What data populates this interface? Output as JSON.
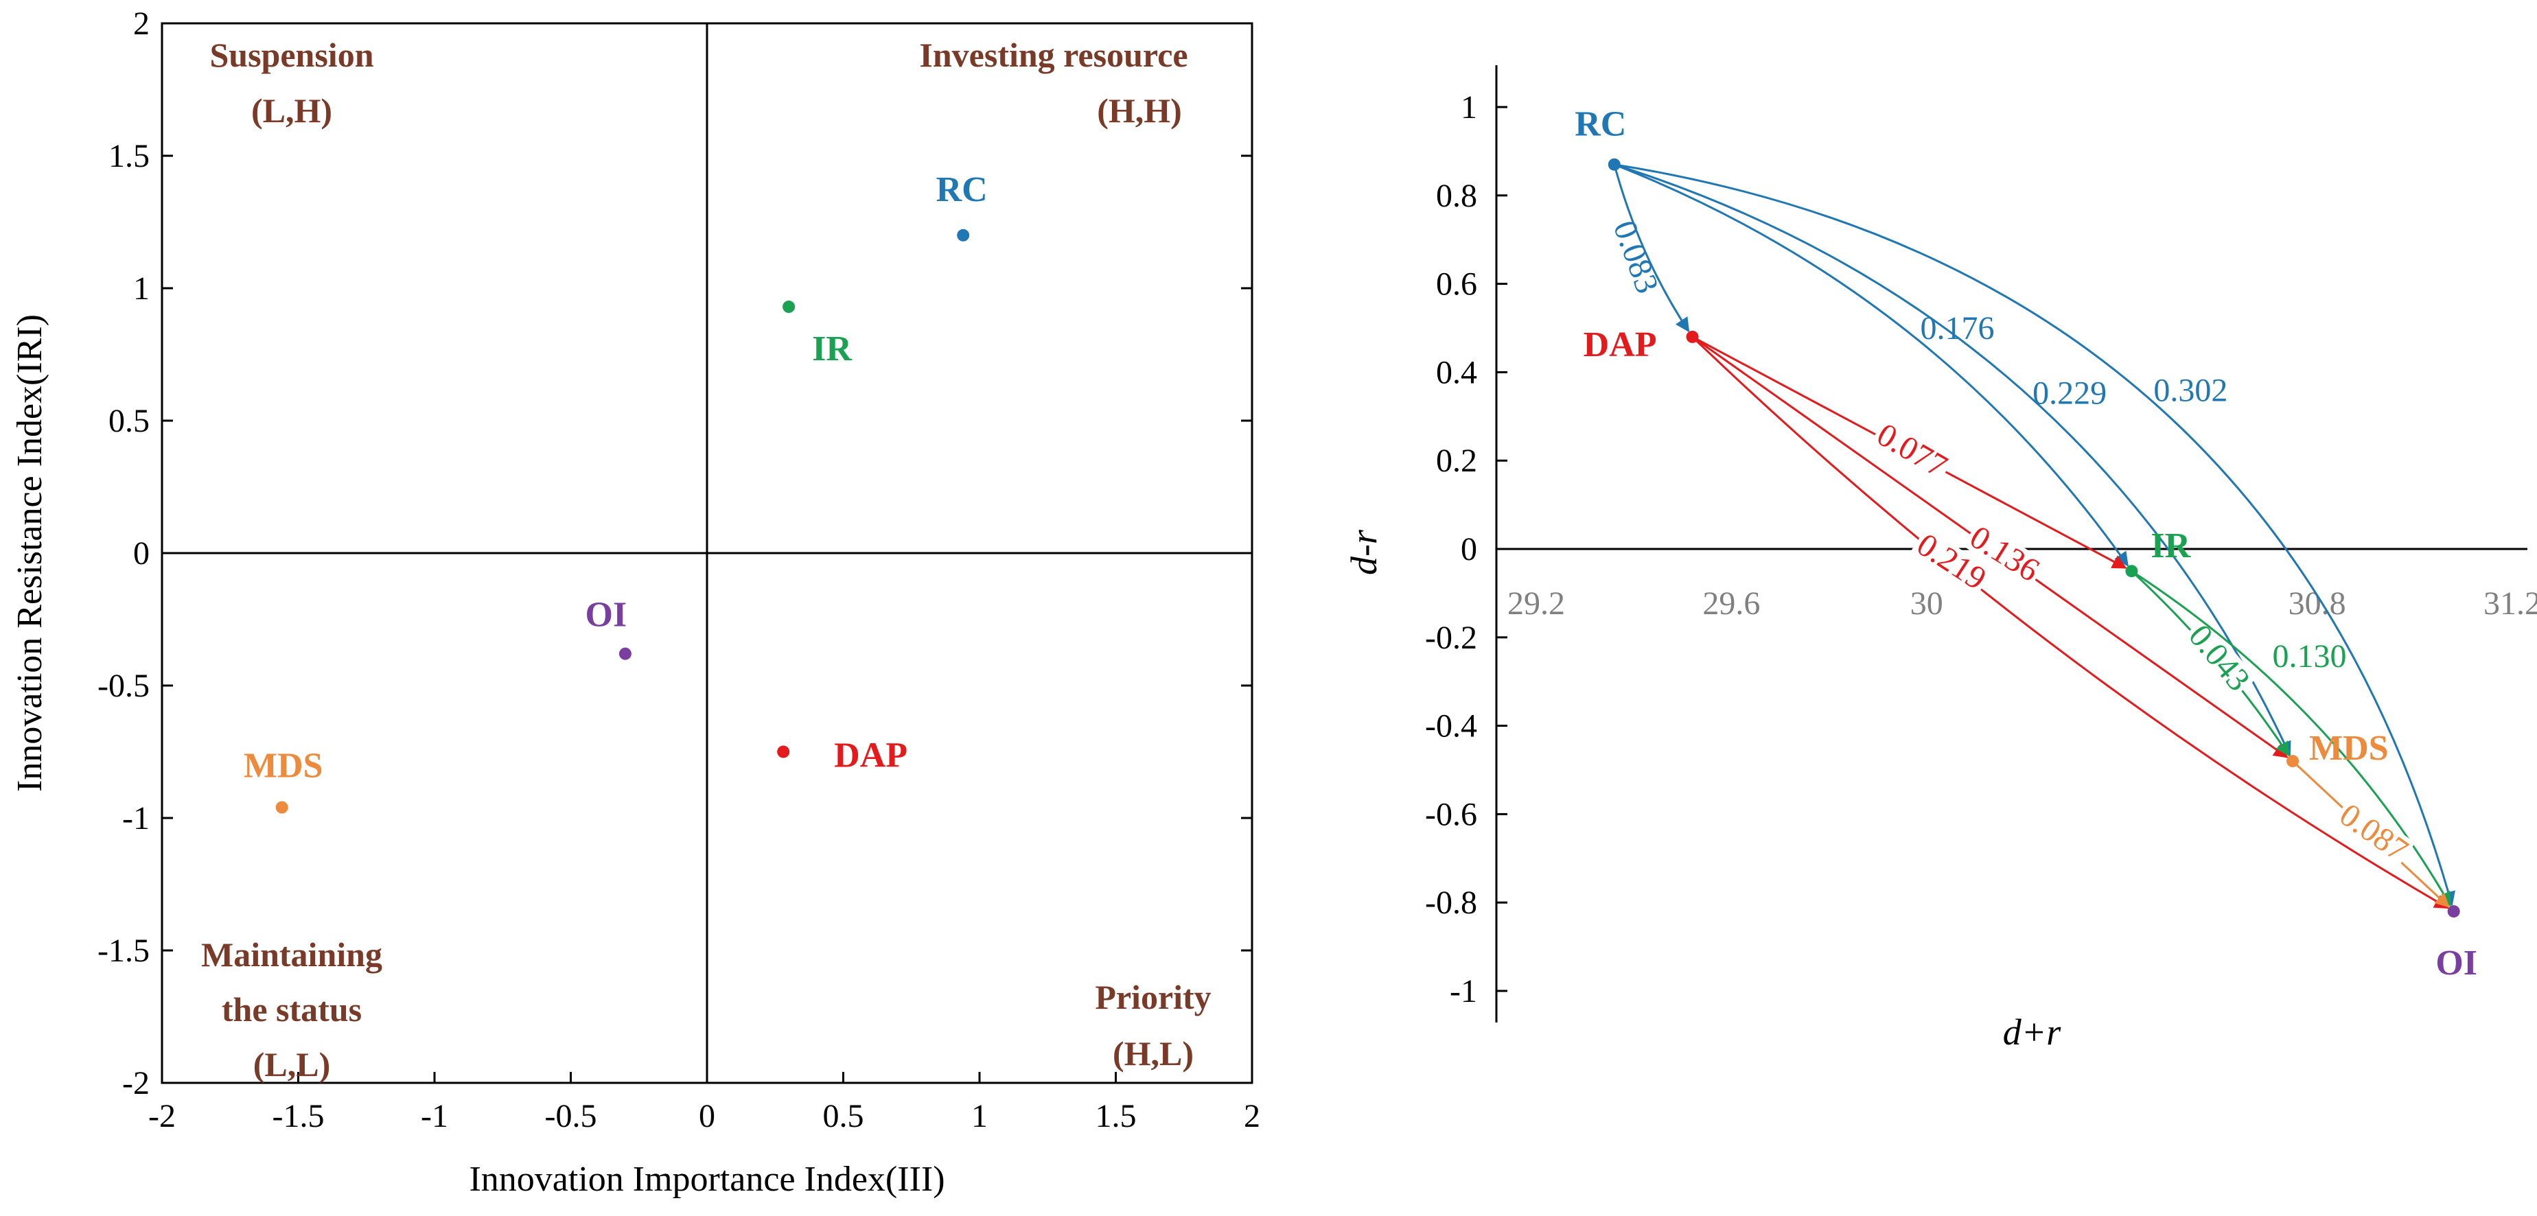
{
  "colors": {
    "RC": "#1f77b4",
    "IR": "#1aa152",
    "DAP": "#e41a1c",
    "MDS": "#ee8a3c",
    "OI": "#7a3ea0",
    "quadrant": "#7a3a28",
    "axis": "#000000",
    "grey_tick": "#808080"
  },
  "chart_data": [
    {
      "type": "scatter",
      "xlabel": "Innovation Importance Index(III)",
      "ylabel": "Innovation Resistance Index(IRI)",
      "xlim": [
        -2,
        2
      ],
      "ylim": [
        -2,
        2
      ],
      "xticks": [
        "-2",
        "-1.5",
        "-1",
        "-0.5",
        "0",
        "0.5",
        "1",
        "1.5",
        "2"
      ],
      "yticks": [
        "2",
        "1.5",
        "1",
        "0.5",
        "0",
        "-0.5",
        "-1",
        "-1.5",
        "-2"
      ],
      "points": [
        {
          "name": "RC",
          "x": 0.94,
          "y": 1.2
        },
        {
          "name": "IR",
          "x": 0.3,
          "y": 0.93
        },
        {
          "name": "DAP",
          "x": 0.28,
          "y": -0.75
        },
        {
          "name": "OI",
          "x": -0.3,
          "y": -0.38
        },
        {
          "name": "MDS",
          "x": -1.56,
          "y": -0.96
        }
      ],
      "quadrants": [
        {
          "lines": [
            "Suspension",
            "(L,H)"
          ]
        },
        {
          "lines": [
            "Investing resource",
            "(H,H)"
          ]
        },
        {
          "lines": [
            "Maintaining",
            "the status",
            "(L,L)"
          ]
        },
        {
          "lines": [
            "Priority",
            "(H,L)"
          ]
        }
      ]
    },
    {
      "type": "network",
      "xlabel": "d+r",
      "ylabel": "d-r",
      "xlim": [
        29.2,
        31.2
      ],
      "ylim": [
        -1,
        1
      ],
      "xticks": [
        "29.2",
        "29.6",
        "30",
        "30.8",
        "31.2"
      ],
      "yticks": [
        "1",
        "0.8",
        "0.6",
        "0.4",
        "0.2",
        "0",
        "-0.2",
        "-0.4",
        "-0.6",
        "-0.8",
        "-1"
      ],
      "nodes": [
        {
          "name": "RC",
          "x": 29.36,
          "y": 0.87
        },
        {
          "name": "DAP",
          "x": 29.52,
          "y": 0.48
        },
        {
          "name": "IR",
          "x": 30.42,
          "y": -0.05
        },
        {
          "name": "MDS",
          "x": 30.75,
          "y": -0.48
        },
        {
          "name": "OI",
          "x": 31.08,
          "y": -0.82
        }
      ],
      "edges": [
        {
          "from": "RC",
          "to": "DAP",
          "weight": "0.083"
        },
        {
          "from": "RC",
          "to": "IR",
          "weight": "0.176"
        },
        {
          "from": "RC",
          "to": "MDS",
          "weight": "0.229"
        },
        {
          "from": "RC",
          "to": "OI",
          "weight": "0.302"
        },
        {
          "from": "DAP",
          "to": "IR",
          "weight": "0.077"
        },
        {
          "from": "DAP",
          "to": "MDS",
          "weight": "0.136"
        },
        {
          "from": "DAP",
          "to": "OI",
          "weight": "0.219"
        },
        {
          "from": "IR",
          "to": "MDS",
          "weight": "0.043"
        },
        {
          "from": "IR",
          "to": "OI",
          "weight": "0.130"
        },
        {
          "from": "MDS",
          "to": "OI",
          "weight": "0.087"
        }
      ]
    }
  ]
}
